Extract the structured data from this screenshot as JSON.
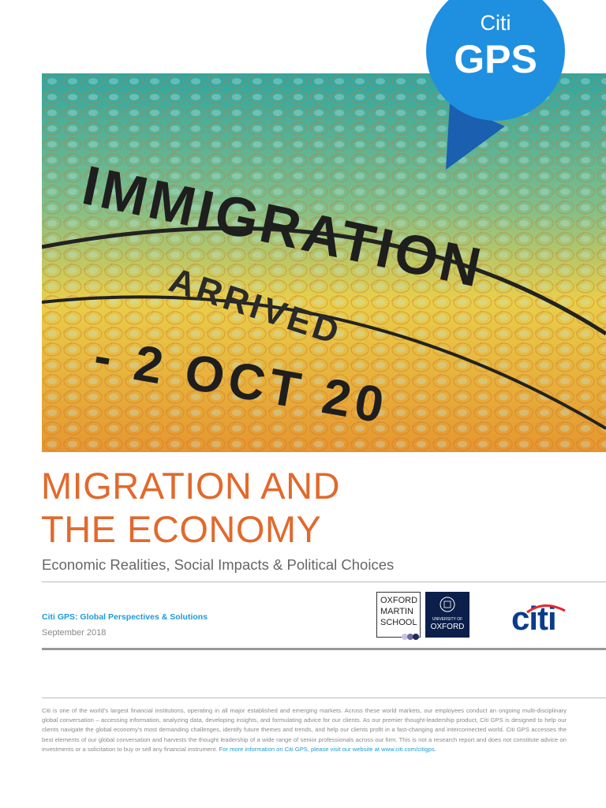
{
  "cover_image": {
    "stamp_lines": [
      "IMMIGRATION",
      "ARRIVED",
      "- 2 OCT 20"
    ]
  },
  "badge": {
    "brand": "Citi",
    "label": "GPS"
  },
  "header": {
    "title_lines": [
      "MIGRATION AND",
      "THE ECONOMY"
    ],
    "subtitle": "Economic Realities, Social Impacts & Political Choices"
  },
  "meta": {
    "series": "Citi GPS: Global Perspectives & Solutions",
    "date": "September 2018"
  },
  "logos": {
    "oxford_martin": [
      "OXFORD",
      "MARTIN",
      "SCHOOL"
    ],
    "university": [
      "UNIVERSITY OF",
      "OXFORD"
    ],
    "citi": "citi"
  },
  "footer": {
    "disclaimer": "Citi is one of the world’s largest financial institutions, operating in all major established and emerging markets. Across these world markets, our employees conduct an ongoing multi-disciplinary global conversation – accessing information, analyzing data, developing insights, and formulating advice for our clients. As our premier thought-leadership product, Citi GPS is designed to help our clients navigate the global economy’s most demanding challenges, identify future themes and trends, and help our clients profit in a fast-changing and interconnected world. Citi GPS accesses the best elements of our global conversation and harvests the thought leadership of a wide range of senior professionals across our firm. This is not a research report and does not constitute advice on investments or a solicitation to buy or sell any financial instrument.",
    "link": "For more information on Citi GPS, please visit our website at www.citi.com/citigps."
  }
}
